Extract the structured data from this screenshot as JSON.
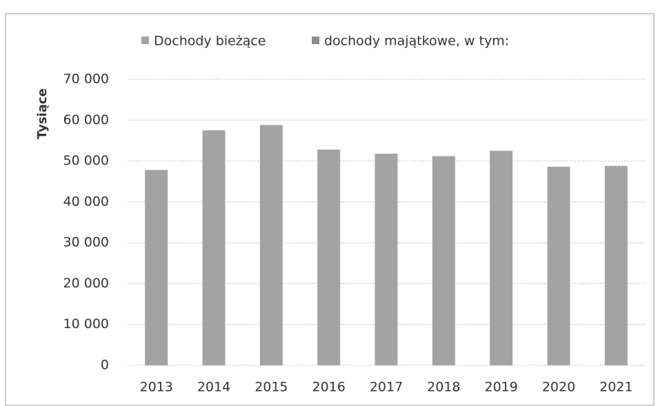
{
  "chart_data": {
    "type": "bar",
    "y_axis_label": "Tysiące",
    "categories": [
      "2013",
      "2014",
      "2015",
      "2016",
      "2017",
      "2018",
      "2019",
      "2020",
      "2021"
    ],
    "series": [
      {
        "name": "Dochody bieżące",
        "color": "#a3a3a3",
        "values": [
          47800,
          57500,
          58800,
          52800,
          51800,
          51200,
          52500,
          48600,
          48800
        ]
      },
      {
        "name": "dochody majątkowe, w tym:",
        "color": "#8c8c8c",
        "values": [
          null,
          null,
          null,
          null,
          null,
          null,
          null,
          null,
          null
        ]
      }
    ],
    "ylim": [
      0,
      70000
    ],
    "yticks": [
      0,
      {
        "value": 10000,
        "label": "10 000"
      },
      {
        "value": 20000,
        "label": "20 000"
      },
      {
        "value": 30000,
        "label": "30 000"
      },
      {
        "value": 40000,
        "label": "40 000"
      },
      {
        "value": 50000,
        "label": "50 000"
      },
      {
        "value": 60000,
        "label": "60 000"
      },
      {
        "value": 70000,
        "label": "70 000"
      }
    ],
    "grid": true,
    "legend": "top"
  }
}
